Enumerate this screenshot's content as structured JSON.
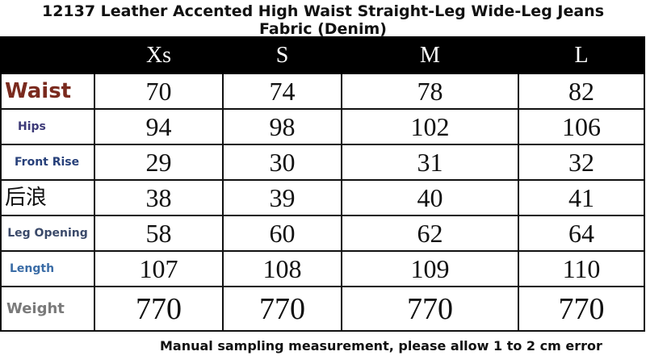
{
  "title": "12137 Leather Accented High Waist Straight-Leg Wide-Leg Jeans Fabric (Denim)",
  "table": {
    "header": [
      "Xs",
      "S",
      "M",
      "L"
    ],
    "rows": [
      {
        "label": "Waist",
        "values": [
          70,
          74,
          78,
          82
        ]
      },
      {
        "label": "Hips",
        "values": [
          94,
          98,
          102,
          106
        ]
      },
      {
        "label": "Front Rise",
        "values": [
          29,
          30,
          31,
          32
        ]
      },
      {
        "label": "后浪",
        "values": [
          38,
          39,
          40,
          41
        ]
      },
      {
        "label": "Leg Opening",
        "values": [
          58,
          60,
          62,
          64
        ]
      },
      {
        "label": "Length",
        "values": [
          107,
          108,
          109,
          110
        ]
      },
      {
        "label": "Weight",
        "values": [
          770,
          770,
          770,
          770
        ]
      }
    ]
  },
  "footer": "Manual sampling measurement, please allow 1 to 2 cm error"
}
